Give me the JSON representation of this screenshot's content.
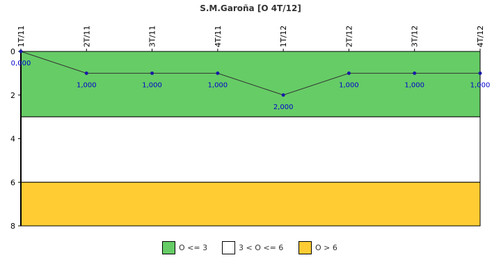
{
  "chart_data": {
    "type": "line",
    "title": "S.M.Garoña [O 4T/12]",
    "categories": [
      "1T/11",
      "2T/11",
      "3T/11",
      "4T/11",
      "1T/12",
      "2T/12",
      "3T/12",
      "4T/12"
    ],
    "values": [
      0,
      1,
      1,
      1,
      2,
      1,
      1,
      1
    ],
    "value_labels": [
      "0,000",
      "1,000",
      "1,000",
      "1,000",
      "2,000",
      "1,000",
      "1,000",
      "1,000"
    ],
    "ylim": [
      0,
      8
    ],
    "y_inverted": true,
    "y_ticks": [
      0,
      2,
      4,
      6,
      8
    ],
    "x_axis_position": "top",
    "grid": false,
    "line_color": "#333333",
    "marker_color": "#1a1aa6",
    "bands": [
      {
        "from": 0,
        "to": 3,
        "color": "#66cc66",
        "label": "O <= 3"
      },
      {
        "from": 3,
        "to": 6,
        "color": "#ffffff",
        "label": "3 < O <= 6"
      },
      {
        "from": 6,
        "to": 8,
        "color": "#ffcc33",
        "label": "O > 6"
      }
    ],
    "legend_position": "bottom-center"
  }
}
